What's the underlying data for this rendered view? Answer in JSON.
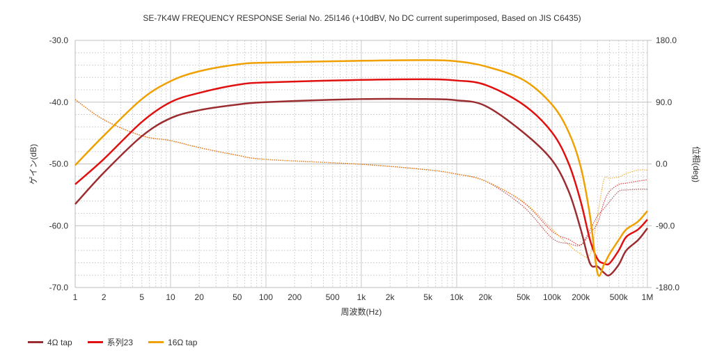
{
  "chart_data": {
    "type": "line",
    "title": "SE-7K4W FREQUENCY RESPONSE Serial No. 25I146 (+10dBV,  No DC current superimposed,  Based on JIS C6435)",
    "xlabel": "周波数(Hz)",
    "ylabel": "ゲイン(dB)",
    "y2label": "位相(deg)",
    "xscale": "log",
    "xlim": [
      1,
      1000000
    ],
    "ylim": [
      -70,
      -30
    ],
    "y2lim": [
      -180,
      180
    ],
    "xticks": [
      1,
      2,
      5,
      10,
      20,
      50,
      100,
      200,
      500,
      1000,
      2000,
      5000,
      10000,
      20000,
      50000,
      100000,
      200000,
      500000,
      1000000
    ],
    "xtick_labels": [
      "1",
      "2",
      "5",
      "10",
      "20",
      "50",
      "100",
      "200",
      "500",
      "1k",
      "2k",
      "5k",
      "10k",
      "20k",
      "50k",
      "100k",
      "200k",
      "500k",
      "1M"
    ],
    "yticks": [
      -30,
      -40,
      -50,
      -60,
      -70
    ],
    "ytick_labels": [
      "-30.0",
      "-40.0",
      "-50.0",
      "-60.0",
      "-70.0"
    ],
    "y2ticks": [
      180,
      90,
      0,
      -90,
      -180
    ],
    "y2tick_labels": [
      "180.0",
      "90.0",
      "0.0",
      "-90.0",
      "-180.0"
    ],
    "grid": true,
    "legend": "bottom-left",
    "x": [
      1,
      2,
      5,
      10,
      20,
      50,
      100,
      1000,
      5000,
      10000,
      20000,
      50000,
      100000,
      150000,
      200000,
      250000,
      300000,
      350000,
      400000,
      500000,
      600000,
      800000,
      1000000
    ],
    "series": [
      {
        "name": "4Ω tap",
        "color": "#9b2d30",
        "axis": "gain",
        "values": [
          -56.5,
          -51.4,
          -45.5,
          -42.6,
          -41.3,
          -40.4,
          -40.0,
          -39.5,
          -39.5,
          -39.7,
          -40.6,
          -44.9,
          -49.4,
          -54.5,
          -60.6,
          -66.1,
          -66.6,
          -67.6,
          -68.0,
          -66.3,
          -64.0,
          -62.3,
          -60.4
        ]
      },
      {
        "name": "系列23",
        "color": "#e01010",
        "axis": "gain",
        "values": [
          -53.3,
          -49.2,
          -43.2,
          -40.0,
          -38.5,
          -37.2,
          -36.8,
          -36.4,
          -36.3,
          -36.5,
          -37.2,
          -40.4,
          -44.9,
          -50.0,
          -56.1,
          -62.3,
          -65.4,
          -66.1,
          -66.1,
          -64.0,
          -61.8,
          -60.6,
          -59.0
        ]
      },
      {
        "name": "16Ω tap",
        "color": "#f0a000",
        "axis": "gain",
        "values": [
          -50.2,
          -45.4,
          -39.5,
          -36.6,
          -35.0,
          -33.9,
          -33.6,
          -33.3,
          -33.2,
          -33.4,
          -34.2,
          -36.4,
          -40.4,
          -44.9,
          -50.5,
          -58.4,
          -67.7,
          -66.3,
          -64.6,
          -62.3,
          -60.6,
          -59.3,
          -57.6
        ]
      },
      {
        "name": "4Ω tap phase",
        "color": "#9b2d30",
        "axis": "phase",
        "values": [
          93.8,
          64.4,
          41,
          34,
          23.8,
          12.7,
          6.6,
          -0.5,
          -8.6,
          -14.8,
          -25,
          -62,
          -108,
          -116,
          -118,
          -96,
          -75.6,
          -65,
          -55,
          -40,
          -38,
          -37,
          -37
        ]
      },
      {
        "name": "系列23 phase",
        "color": "#e01010",
        "axis": "phase",
        "values": [
          93.8,
          64.4,
          41,
          34,
          23.8,
          12.7,
          6.6,
          -0.5,
          -8.6,
          -14.8,
          -25,
          -56,
          -98,
          -110,
          -118,
          -101,
          -86,
          -56,
          -40,
          -30,
          -28,
          -25,
          -23
        ]
      },
      {
        "name": "16Ω tap phase",
        "color": "#f0a000",
        "axis": "phase",
        "values": [
          93.8,
          64.4,
          41,
          34,
          23.8,
          12.7,
          6.6,
          -0.5,
          -8.6,
          -14.8,
          -25,
          -55,
          -95,
          -118,
          -131,
          -132,
          -75,
          -23,
          -21,
          -19,
          -14,
          -9,
          -9
        ]
      }
    ]
  }
}
